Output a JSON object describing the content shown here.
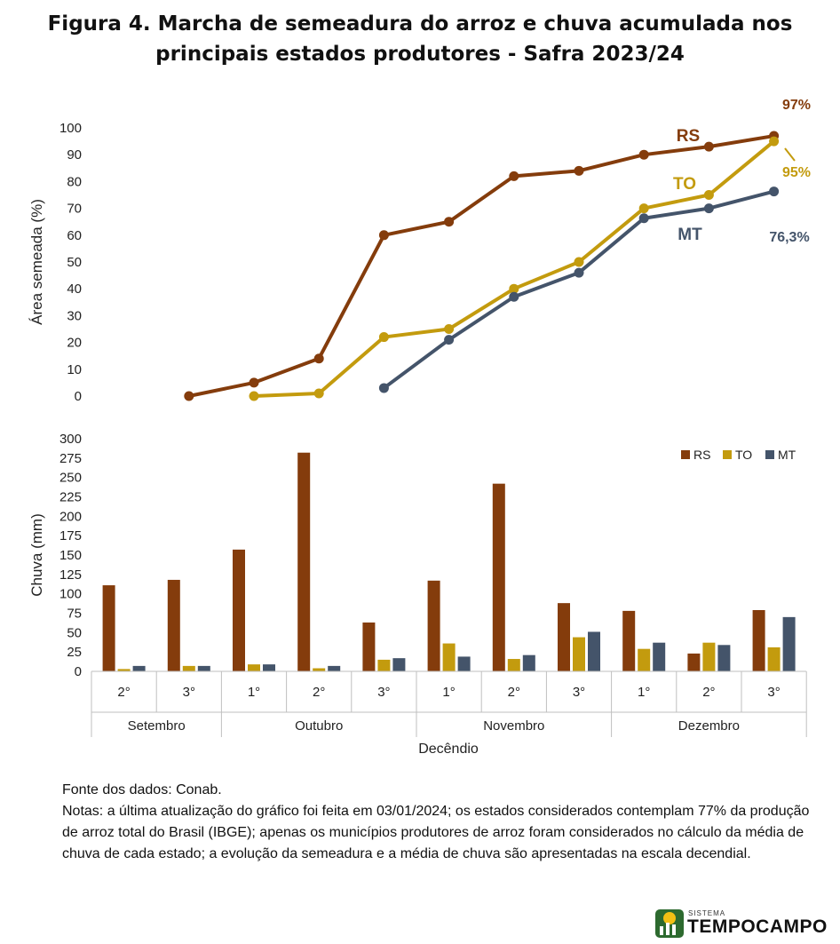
{
  "title_lines": [
    "Figura 4. Marcha de semeadura do arroz e chuva acumulada nos",
    "principais estados produtores - Safra 2023/24"
  ],
  "chart_data": [
    {
      "type": "line",
      "ylabel": "Área semeada (%)",
      "ylim": [
        0,
        100
      ],
      "yticks": [
        0,
        10,
        20,
        30,
        40,
        50,
        60,
        70,
        80,
        90,
        100
      ],
      "x": [
        "Set 2°",
        "Set 3°",
        "Out 1°",
        "Out 2°",
        "Out 3°",
        "Nov 1°",
        "Nov 2°",
        "Nov 3°",
        "Dez 1°",
        "Dez 2°",
        "Dez 3°"
      ],
      "series": [
        {
          "name": "RS",
          "color": "#843c0c",
          "values": [
            null,
            0,
            5,
            14,
            60,
            65,
            82,
            84,
            90,
            93,
            97
          ],
          "end_label": "97%"
        },
        {
          "name": "TO",
          "color": "#c39b0e",
          "values": [
            null,
            null,
            0,
            1,
            22,
            25,
            40,
            50,
            70,
            75,
            95
          ],
          "end_label": "95%"
        },
        {
          "name": "MT",
          "color": "#44546a",
          "values": [
            null,
            null,
            null,
            null,
            3,
            21,
            37,
            46,
            66.3,
            70,
            76.3
          ],
          "end_label": "76,3%"
        }
      ]
    },
    {
      "type": "bar",
      "ylabel": "Chuva (mm)",
      "xlabel": "Decêndio",
      "ylim": [
        0,
        300
      ],
      "yticks": [
        0,
        25,
        50,
        75,
        100,
        125,
        150,
        175,
        200,
        225,
        250,
        275,
        300
      ],
      "categories": [
        "2°",
        "3°",
        "1°",
        "2°",
        "3°",
        "1°",
        "2°",
        "3°",
        "1°",
        "2°",
        "3°"
      ],
      "groups": [
        {
          "label": "Setembro",
          "count": 2
        },
        {
          "label": "Outubro",
          "count": 3
        },
        {
          "label": "Novembro",
          "count": 3
        },
        {
          "label": "Dezembro",
          "count": 3
        }
      ],
      "legend_position": "top-right",
      "series": [
        {
          "name": "RS",
          "color": "#843c0c",
          "values": [
            111,
            118,
            157,
            282,
            63,
            117,
            242,
            88,
            78,
            23,
            79
          ]
        },
        {
          "name": "TO",
          "color": "#c39b0e",
          "values": [
            3,
            7,
            9,
            4,
            15,
            36,
            16,
            44,
            29,
            37,
            31
          ]
        },
        {
          "name": "MT",
          "color": "#44546a",
          "values": [
            7,
            7,
            9,
            7,
            17,
            19,
            21,
            51,
            37,
            34,
            70
          ]
        }
      ]
    }
  ],
  "notes": {
    "source": "Fonte dos dados: Conab.",
    "text": "Notas: a última atualização do gráfico foi feita em 03/01/2024; os estados considerados contemplam 77% da produção de arroz total do Brasil (IBGE); apenas os municípios produtores de arroz foram considerados no cálculo da média de chuva de cada estado; a evolução da semeadura e a média de chuva são apresentadas na escala decendial."
  },
  "logo": {
    "small": "SISTEMA",
    "big": "TEMPOCAMPO"
  }
}
